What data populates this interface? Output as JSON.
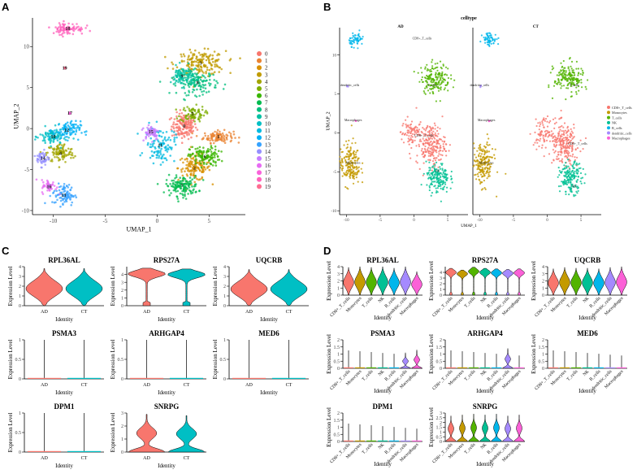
{
  "panel_letters": [
    "A",
    "B",
    "C",
    "D"
  ],
  "colors": {
    "cluster": [
      "#F8766D",
      "#EA8331",
      "#D89000",
      "#C09B00",
      "#A3A500",
      "#7CAE00",
      "#39B600",
      "#00BB4E",
      "#00BF7D",
      "#00C1A3",
      "#00BFC4",
      "#00BAE0",
      "#00B0F6",
      "#35A2FF",
      "#9590FF",
      "#C77CFF",
      "#E76BF3",
      "#FA62DB",
      "#FF62BC",
      "#FF6C91"
    ],
    "celltype": [
      "#F8766D",
      "#C49A00",
      "#53B400",
      "#00C094",
      "#00B6EB",
      "#A58AFF",
      "#FB61D7"
    ],
    "ad": "#F8766D",
    "ct": "#00BFC4"
  },
  "chart_data": [
    {
      "panel": "A",
      "type": "scatter",
      "title": "",
      "xlabel": "UMAP_1",
      "ylabel": "UMAP_2",
      "xlim": [
        -12,
        8.5
      ],
      "ylim": [
        -10.5,
        13.5
      ],
      "xticks": [
        -10,
        -5,
        0,
        5
      ],
      "yticks": [
        -10,
        -5,
        0,
        5,
        10
      ],
      "legend": [
        "0",
        "1",
        "2",
        "3",
        "4",
        "5",
        "6",
        "7",
        "8",
        "9",
        "10",
        "11",
        "12",
        "13",
        "14",
        "15",
        "16",
        "17",
        "18",
        "19"
      ],
      "cluster_labels": [
        {
          "label": "0",
          "x": 2.6,
          "y": 0.3
        },
        {
          "label": "1",
          "x": 5.9,
          "y": -1.0
        },
        {
          "label": "2",
          "x": 3.6,
          "y": -4.8
        },
        {
          "label": "3",
          "x": 4.2,
          "y": 8.0
        },
        {
          "label": "4",
          "x": -9.3,
          "y": -3.0
        },
        {
          "label": "5",
          "x": 3.4,
          "y": 1.8
        },
        {
          "label": "6",
          "x": 4.6,
          "y": -3.4
        },
        {
          "label": "7",
          "x": 2.4,
          "y": -7.0
        },
        {
          "label": "8",
          "x": 3.9,
          "y": 5.6
        },
        {
          "label": "9",
          "x": 2.4,
          "y": 6.4
        },
        {
          "label": "10",
          "x": -10.0,
          "y": -1.0
        },
        {
          "label": "11",
          "x": 0.3,
          "y": -2.0
        },
        {
          "label": "12",
          "x": -8.7,
          "y": -0.2
        },
        {
          "label": "13",
          "x": -9.0,
          "y": -8.1
        },
        {
          "label": "14",
          "x": -11.0,
          "y": -3.6
        },
        {
          "label": "15",
          "x": -0.6,
          "y": -0.4
        },
        {
          "label": "16",
          "x": -10.4,
          "y": -7.1
        },
        {
          "label": "17",
          "x": -8.4,
          "y": 1.9
        },
        {
          "label": "18",
          "x": -8.6,
          "y": 12.2
        },
        {
          "label": "19",
          "x": -8.9,
          "y": 7.4
        }
      ],
      "clusters": [
        {
          "c": 0,
          "x": 2.6,
          "y": 0.3,
          "sx": 1.0,
          "sy": 1.3,
          "n": 150
        },
        {
          "c": 1,
          "x": 5.9,
          "y": -1.0,
          "sx": 1.2,
          "sy": 0.6,
          "n": 110
        },
        {
          "c": 2,
          "x": 3.6,
          "y": -4.8,
          "sx": 1.3,
          "sy": 1.3,
          "n": 140
        },
        {
          "c": 3,
          "x": 4.2,
          "y": 8.0,
          "sx": 2.0,
          "sy": 1.2,
          "n": 180
        },
        {
          "c": 4,
          "x": -9.3,
          "y": -3.0,
          "sx": 1.1,
          "sy": 1.0,
          "n": 110
        },
        {
          "c": 5,
          "x": 3.4,
          "y": 1.8,
          "sx": 1.0,
          "sy": 0.8,
          "n": 80
        },
        {
          "c": 6,
          "x": 4.6,
          "y": -3.4,
          "sx": 1.2,
          "sy": 1.0,
          "n": 120
        },
        {
          "c": 7,
          "x": 2.4,
          "y": -7.0,
          "sx": 1.3,
          "sy": 1.0,
          "n": 140
        },
        {
          "c": 8,
          "x": 3.9,
          "y": 5.6,
          "sx": 1.6,
          "sy": 1.2,
          "n": 140
        },
        {
          "c": 9,
          "x": 2.4,
          "y": 6.4,
          "sx": 0.9,
          "sy": 1.0,
          "n": 90
        },
        {
          "c": 10,
          "x": -10.0,
          "y": -1.0,
          "sx": 1.1,
          "sy": 0.9,
          "n": 100
        },
        {
          "c": 11,
          "x": 0.3,
          "y": -2.0,
          "sx": 1.2,
          "sy": 1.8,
          "n": 110
        },
        {
          "c": 12,
          "x": -8.7,
          "y": -0.2,
          "sx": 1.1,
          "sy": 0.9,
          "n": 90
        },
        {
          "c": 13,
          "x": -9.0,
          "y": -8.1,
          "sx": 0.9,
          "sy": 1.1,
          "n": 90
        },
        {
          "c": 14,
          "x": -11.0,
          "y": -3.6,
          "sx": 0.5,
          "sy": 0.8,
          "n": 50
        },
        {
          "c": 15,
          "x": -0.6,
          "y": -0.4,
          "sx": 0.7,
          "sy": 0.8,
          "n": 60
        },
        {
          "c": 16,
          "x": -10.4,
          "y": -7.1,
          "sx": 0.6,
          "sy": 0.7,
          "n": 45
        },
        {
          "c": 17,
          "x": -8.4,
          "y": 1.9,
          "sx": 0.1,
          "sy": 0.1,
          "n": 6
        },
        {
          "c": 18,
          "x": -8.6,
          "y": 12.2,
          "sx": 1.3,
          "sy": 0.6,
          "n": 90
        },
        {
          "c": 19,
          "x": -8.9,
          "y": 7.4,
          "sx": 0.1,
          "sy": 0.1,
          "n": 5
        }
      ]
    },
    {
      "panel": "B",
      "type": "scatter",
      "title": "celltype",
      "facets": [
        "AD",
        "CT"
      ],
      "xlabel": "UMAP_1",
      "ylabel": "UMAP_2",
      "xlim": [
        -11,
        8
      ],
      "ylim": [
        -10.5,
        13.5
      ],
      "xticks": [
        -10,
        -5,
        0,
        5
      ],
      "yticks": [
        -10,
        -5,
        0,
        5,
        10
      ],
      "legend": [
        "CD8+_T_cells",
        "Monocytes",
        "T_cells",
        "NK",
        "B_cells",
        "dendritic_cells",
        "Macrophages"
      ],
      "facet_labels": [
        [
          {
            "label": "CD8+_T_cells",
            "x": 1.2,
            "y": 12.0
          },
          {
            "label": "dendritic_cells",
            "x": -9.5,
            "y": 6.0
          },
          {
            "label": "Macrophages",
            "x": -9.0,
            "y": 1.5
          },
          {
            "label": "T_cells",
            "x": 2.7,
            "y": 6.0
          },
          {
            "label": "CD8+_T_cells",
            "x": 1.5,
            "y": -0.5
          },
          {
            "label": "Monocytes",
            "x": -9.0,
            "y": -4.0
          },
          {
            "label": "NK",
            "x": 3.5,
            "y": -5.0
          }
        ],
        [
          {
            "label": "dendritic_cells",
            "x": -10.0,
            "y": 6.0
          },
          {
            "label": "Macrophages",
            "x": -9.0,
            "y": 1.5
          },
          {
            "label": "T_cells",
            "x": 4.0,
            "y": 6.0
          },
          {
            "label": "CD8+_T_cells",
            "x": 4.5,
            "y": -1.5
          },
          {
            "label": "Monocytes",
            "x": -9.0,
            "y": -4.0
          },
          {
            "label": "NK",
            "x": 4.0,
            "y": -7.0
          }
        ]
      ],
      "clusters": [
        {
          "c": 0,
          "x": 2.5,
          "y": -1.5,
          "sx": 1.8,
          "sy": 2.2,
          "n": 220
        },
        {
          "c": 0,
          "x": -0.5,
          "y": 0.0,
          "sx": 1.2,
          "sy": 1.5,
          "n": 80
        },
        {
          "c": 1,
          "x": -9.5,
          "y": -4.0,
          "sx": 1.3,
          "sy": 2.3,
          "n": 190
        },
        {
          "c": 2,
          "x": 3.2,
          "y": 7.0,
          "sx": 1.8,
          "sy": 1.6,
          "n": 180
        },
        {
          "c": 3,
          "x": 3.5,
          "y": -5.8,
          "sx": 1.4,
          "sy": 1.6,
          "n": 170
        },
        {
          "c": 4,
          "x": -8.5,
          "y": 12.0,
          "sx": 0.9,
          "sy": 0.7,
          "n": 60
        },
        {
          "c": 5,
          "x": -9.8,
          "y": 6.0,
          "sx": 0.1,
          "sy": 0.1,
          "n": 4
        },
        {
          "c": 6,
          "x": -8.6,
          "y": 1.5,
          "sx": 0.1,
          "sy": 0.1,
          "n": 4
        }
      ]
    },
    {
      "panel": "C",
      "type": "violin",
      "categories": [
        "AD",
        "CT"
      ],
      "xlabel": "Identity",
      "ylabel": "Expression Level",
      "genes": [
        {
          "gene": "RPL36AL",
          "ymax": 4,
          "yticks": [
            0,
            1,
            2,
            3,
            4
          ],
          "vals": [
            2.5,
            2.5
          ],
          "kind": "wide"
        },
        {
          "gene": "RPS27A",
          "ymax": 5,
          "yticks": [
            0,
            1,
            2,
            3,
            4
          ],
          "vals": [
            4.4,
            4.3
          ],
          "kind": "top"
        },
        {
          "gene": "UQCRB",
          "ymax": 4,
          "yticks": [
            0,
            1,
            2,
            3,
            4
          ],
          "vals": [
            2.4,
            2.4
          ],
          "kind": "wide"
        },
        {
          "gene": "PSMA3",
          "ymax": 1,
          "yticks": [
            0,
            0.5,
            1
          ],
          "vals": [
            0,
            0
          ],
          "kind": "line"
        },
        {
          "gene": "ARHGAP4",
          "ymax": 1,
          "yticks": [
            0,
            0.5,
            1
          ],
          "vals": [
            0,
            0
          ],
          "kind": "line"
        },
        {
          "gene": "MED6",
          "ymax": 1,
          "yticks": [
            0,
            0.5,
            1
          ],
          "vals": [
            0,
            0
          ],
          "kind": "line"
        },
        {
          "gene": "DPM1",
          "ymax": 1,
          "yticks": [
            0,
            0.5,
            1
          ],
          "vals": [
            0,
            0
          ],
          "kind": "line"
        },
        {
          "gene": "SNRPG",
          "ymax": 3,
          "yticks": [
            0,
            1,
            2,
            3
          ],
          "vals": [
            1.6,
            1.5
          ],
          "kind": "drop"
        }
      ]
    },
    {
      "panel": "D",
      "type": "violin",
      "categories": [
        "CD8+_T_cells",
        "Monocytes",
        "T_cells",
        "NK",
        "B_cells",
        "dendritic_cells",
        "Macrophages"
      ],
      "xlabel": "Identity",
      "ylabel": "Expression Level",
      "genes": [
        {
          "gene": "RPL36AL",
          "ymax": 4,
          "yticks": [
            0,
            1,
            2,
            3,
            4
          ],
          "vals": [
            2.6,
            2.7,
            2.6,
            2.7,
            2.5,
            2.7,
            2.0
          ],
          "kind": "wide"
        },
        {
          "gene": "RPS27A",
          "ymax": 5,
          "yticks": [
            0,
            1,
            2,
            3,
            4
          ],
          "vals": [
            4.3,
            4.0,
            4.5,
            4.3,
            4.2,
            4.1,
            4.2
          ],
          "kind": "top"
        },
        {
          "gene": "UQCRB",
          "ymax": 4,
          "yticks": [
            0,
            1,
            2,
            3,
            4
          ],
          "vals": [
            2.4,
            2.6,
            2.5,
            2.5,
            2.4,
            2.6,
            2.8
          ],
          "kind": "wide"
        },
        {
          "gene": "PSMA3",
          "ymax": 2,
          "yticks": [
            0,
            0.5,
            1,
            1.5,
            2
          ],
          "vals": [
            0,
            0,
            0,
            0,
            0,
            0.5,
            0.7
          ],
          "kind": "spike"
        },
        {
          "gene": "ARHGAP4",
          "ymax": 2,
          "yticks": [
            0,
            0.5,
            1,
            1.5,
            2
          ],
          "vals": [
            0,
            0,
            0,
            0,
            0,
            0.8,
            0
          ],
          "kind": "spike"
        },
        {
          "gene": "MED6",
          "ymax": 2,
          "yticks": [
            0,
            0.5,
            1,
            1.5,
            2
          ],
          "vals": [
            0,
            0,
            0,
            0,
            0,
            0,
            0
          ],
          "kind": "spike"
        },
        {
          "gene": "DPM1",
          "ymax": 2,
          "yticks": [
            0,
            0.5,
            1,
            1.5,
            2
          ],
          "vals": [
            0,
            0,
            0,
            0,
            0,
            0,
            0
          ],
          "kind": "spike"
        },
        {
          "gene": "SNRPG",
          "ymax": 3,
          "yticks": [
            0,
            0.5,
            1,
            1.5,
            2,
            2.5,
            3
          ],
          "vals": [
            1.4,
            1.5,
            1.6,
            1.5,
            1.6,
            1.4,
            1.5
          ],
          "kind": "drop"
        }
      ]
    }
  ]
}
